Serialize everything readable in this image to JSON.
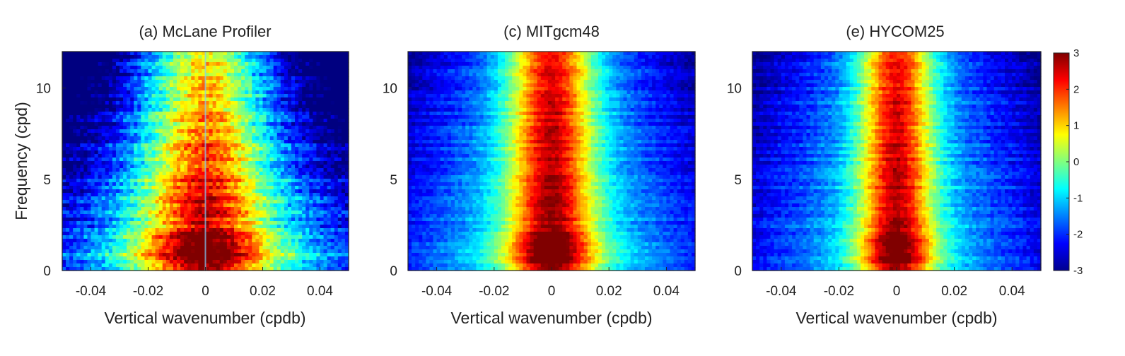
{
  "chart_data": [
    {
      "type": "heatmap",
      "title": "(a) McLane Profiler",
      "xlabel": "Vertical wavenumber (cpdb)",
      "ylabel": "Frequency (cpd)",
      "xlim": [
        -0.05,
        0.05
      ],
      "ylim": [
        0,
        12
      ],
      "xticks": [
        -0.04,
        -0.02,
        0,
        0.02,
        0.04
      ],
      "xtick_labels": [
        "-0.04",
        "-0.02",
        "0",
        "0.02",
        "0.04"
      ],
      "yticks": [
        0,
        5,
        10
      ],
      "ytick_labels": [
        "0",
        "5",
        "10"
      ],
      "pattern": {
        "peak": 3.0,
        "base": 0.3,
        "y_decay": 0.22,
        "x_scale": 0.022,
        "noise": 0.9,
        "line_at_zero": true
      }
    },
    {
      "type": "heatmap",
      "title": "(c) MITgcm48",
      "xlabel": "Vertical wavenumber (cpdb)",
      "ylabel": "",
      "xlim": [
        -0.05,
        0.05
      ],
      "ylim": [
        0,
        12
      ],
      "xticks": [
        -0.04,
        -0.02,
        0,
        0.02,
        0.04
      ],
      "xtick_labels": [
        "-0.04",
        "-0.02",
        "0",
        "0.02",
        "0.04"
      ],
      "yticks": [
        0,
        5,
        10
      ],
      "ytick_labels": [
        "0",
        "5",
        "10"
      ],
      "pattern": {
        "peak": 3.2,
        "base": 0.0,
        "y_decay": 0.07,
        "x_scale": 0.014,
        "noise": 0.45,
        "line_at_zero": false
      }
    },
    {
      "type": "heatmap",
      "title": "(e) HYCOM25",
      "xlabel": "Vertical wavenumber (cpdb)",
      "ylabel": "",
      "xlim": [
        -0.05,
        0.05
      ],
      "ylim": [
        0,
        12
      ],
      "xticks": [
        -0.04,
        -0.02,
        0,
        0.02,
        0.04
      ],
      "xtick_labels": [
        "-0.04",
        "-0.02",
        "0",
        "0.02",
        "0.04"
      ],
      "yticks": [
        0,
        5,
        10
      ],
      "ytick_labels": [
        "0",
        "5",
        "10"
      ],
      "pattern": {
        "peak": 3.2,
        "base": -0.2,
        "y_decay": 0.06,
        "x_scale": 0.012,
        "noise": 0.5,
        "line_at_zero": false
      }
    }
  ],
  "colorbar": {
    "min": -3,
    "max": 3,
    "ticks": [
      -3,
      -2,
      -1,
      0,
      1,
      2,
      3
    ],
    "tick_labels": [
      "-3",
      "-2",
      "-1",
      "0",
      "1",
      "2",
      "3"
    ],
    "colormap": "jet",
    "colors": [
      "#00008f",
      "#0000ff",
      "#00ffff",
      "#ffff00",
      "#ff0000",
      "#800000"
    ]
  }
}
